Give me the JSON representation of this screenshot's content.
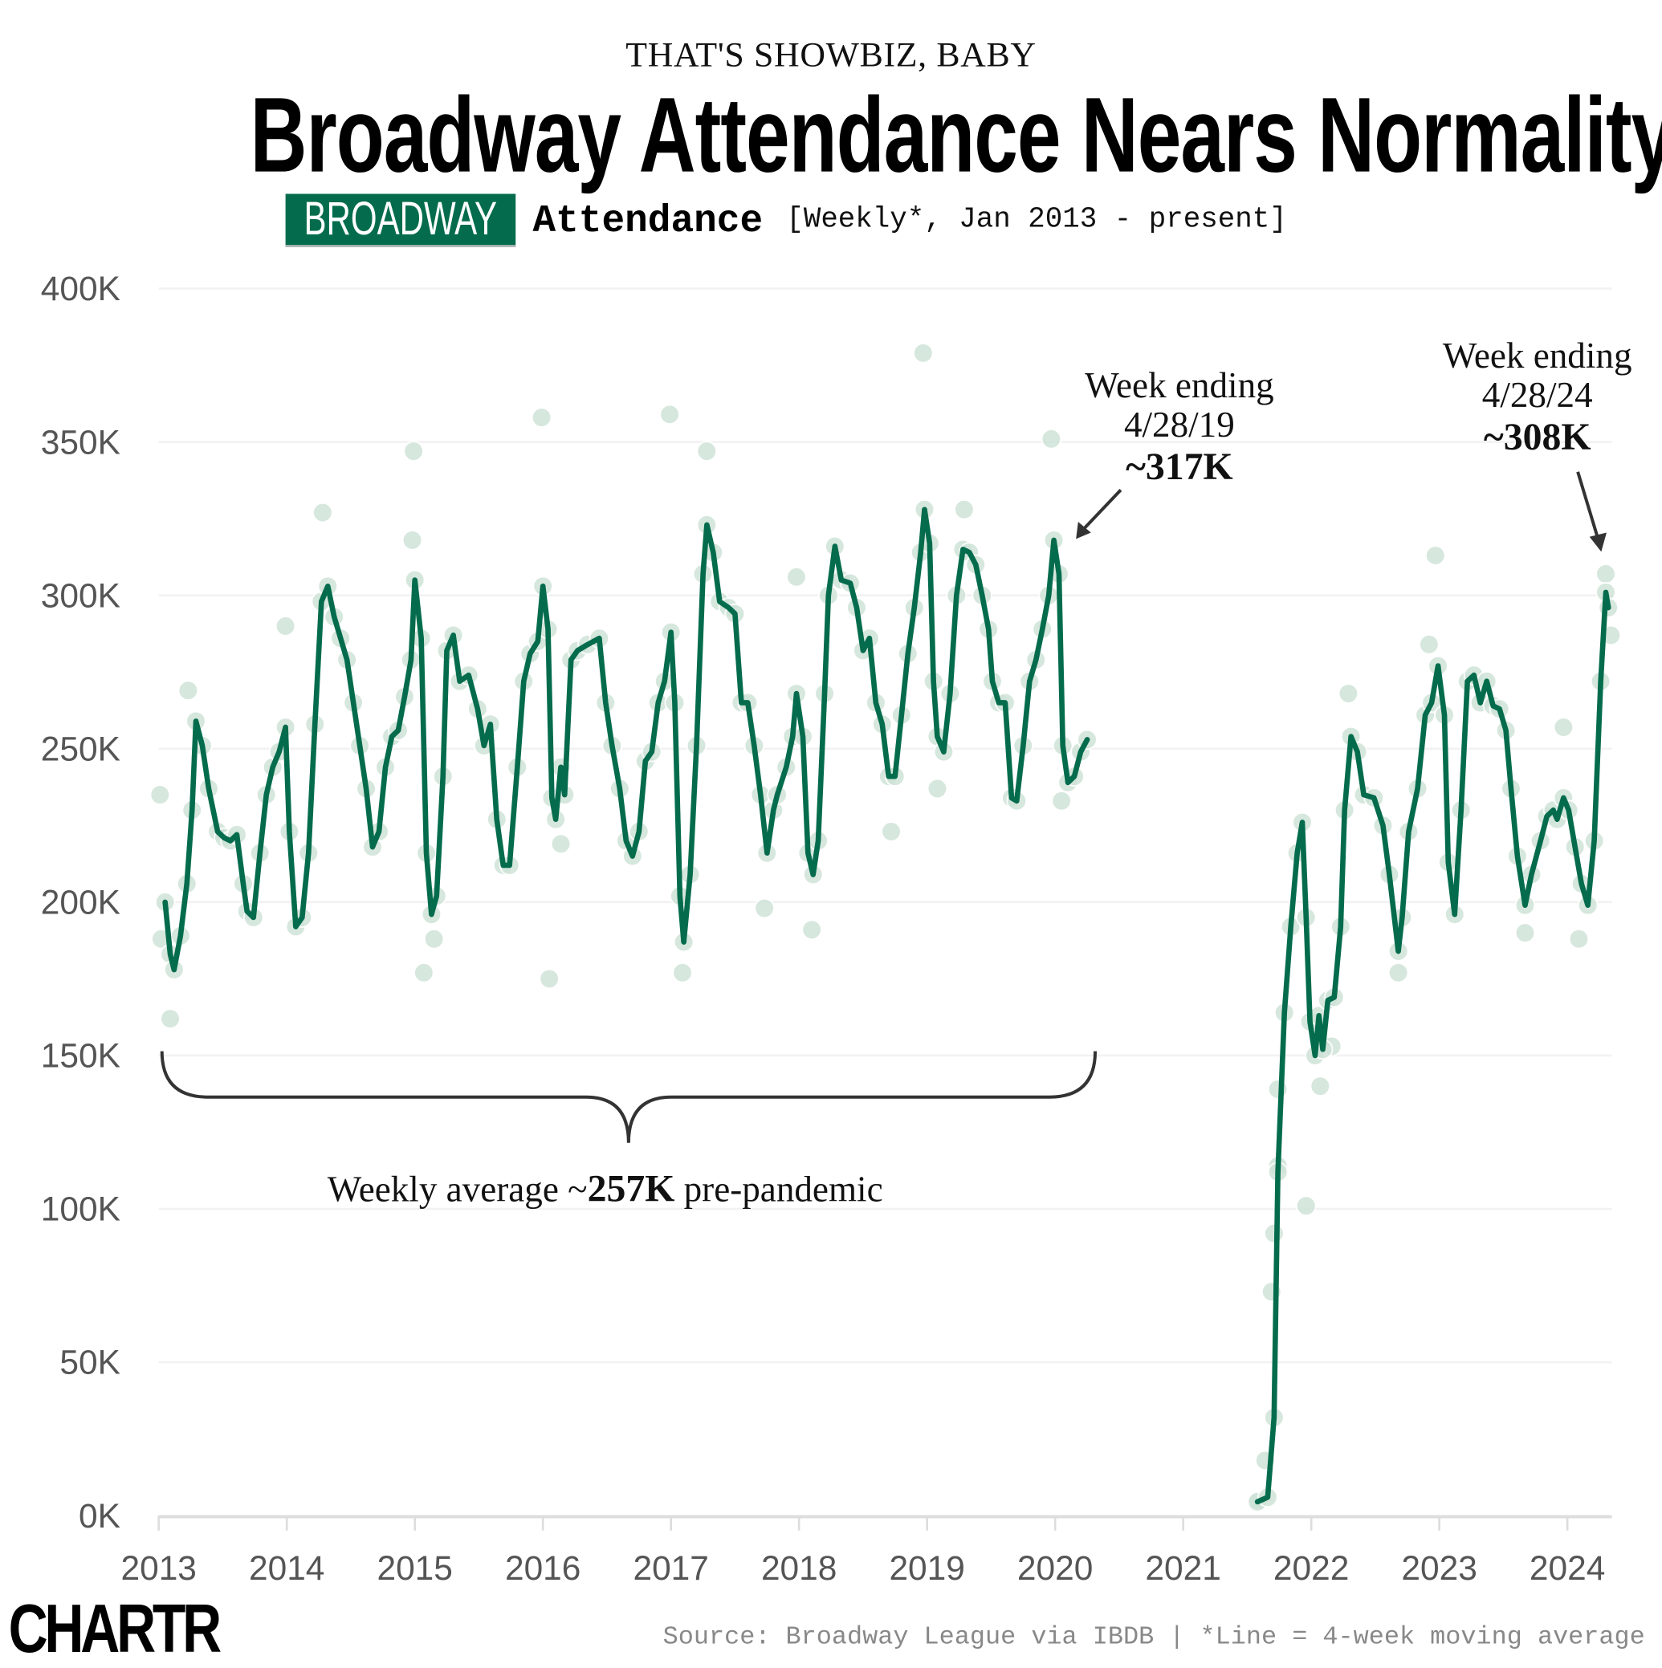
{
  "header": {
    "kicker": "THAT'S SHOWBIZ, BABY",
    "title": "Broadway Attendance Nears Normality",
    "sign_text": "BROADWAY",
    "subtitle_bold": "Attendance",
    "subtitle_light": "[Weekly*, Jan 2013 - present]"
  },
  "footer": {
    "logo": "CHARTR",
    "source": "Source: Broadway League via IBDB | *Line = 4-week moving average"
  },
  "colors": {
    "line": "#046c4c",
    "dots": "#cfe3d8",
    "sign": "#046c4c"
  },
  "chart_data": {
    "type": "line",
    "title": "Broadway Attendance Nears Normality",
    "xlabel": "",
    "ylabel": "",
    "xlim": [
      2013,
      2024.35
    ],
    "ylim": [
      0,
      400
    ],
    "grid": true,
    "x_ticks": [
      "2013",
      "2014",
      "2015",
      "2016",
      "2017",
      "2018",
      "2019",
      "2020",
      "2021",
      "2022",
      "2023",
      "2024"
    ],
    "y_ticks": [
      "0K",
      "50K",
      "100K",
      "150K",
      "200K",
      "250K",
      "300K",
      "350K",
      "400K"
    ],
    "moving_average_segments": [
      [
        [
          2013.05,
          200
        ],
        [
          2013.09,
          183
        ],
        [
          2013.12,
          178
        ],
        [
          2013.17,
          189
        ],
        [
          2013.22,
          206
        ],
        [
          2013.26,
          230
        ],
        [
          2013.29,
          259
        ],
        [
          2013.34,
          251
        ],
        [
          2013.39,
          237
        ],
        [
          2013.46,
          223
        ],
        [
          2013.51,
          221
        ],
        [
          2013.56,
          220
        ],
        [
          2013.61,
          222
        ],
        [
          2013.66,
          206
        ],
        [
          2013.69,
          197
        ],
        [
          2013.74,
          195
        ],
        [
          2013.79,
          216
        ],
        [
          2013.84,
          235
        ],
        [
          2013.89,
          244
        ],
        [
          2013.94,
          249
        ],
        [
          2013.99,
          257
        ],
        [
          2014.02,
          223
        ],
        [
          2014.07,
          192
        ],
        [
          2014.12,
          195
        ],
        [
          2014.17,
          216
        ],
        [
          2014.22,
          258
        ],
        [
          2014.27,
          298
        ],
        [
          2014.32,
          303
        ],
        [
          2014.37,
          293
        ],
        [
          2014.42,
          286
        ],
        [
          2014.47,
          279
        ],
        [
          2014.52,
          265
        ],
        [
          2014.57,
          251
        ],
        [
          2014.62,
          237
        ],
        [
          2014.67,
          218
        ],
        [
          2014.72,
          223
        ],
        [
          2014.77,
          244
        ],
        [
          2014.82,
          254
        ],
        [
          2014.87,
          256
        ],
        [
          2014.92,
          267
        ],
        [
          2014.97,
          279
        ],
        [
          2015.0,
          305
        ],
        [
          2015.05,
          286
        ],
        [
          2015.09,
          216
        ],
        [
          2015.13,
          196
        ],
        [
          2015.17,
          202
        ],
        [
          2015.22,
          241
        ],
        [
          2015.25,
          282
        ],
        [
          2015.3,
          287
        ],
        [
          2015.35,
          272
        ],
        [
          2015.42,
          274
        ],
        [
          2015.49,
          263
        ],
        [
          2015.54,
          251
        ],
        [
          2015.59,
          258
        ],
        [
          2015.64,
          227
        ],
        [
          2015.69,
          212
        ],
        [
          2015.74,
          212
        ],
        [
          2015.8,
          244
        ],
        [
          2015.85,
          272
        ],
        [
          2015.9,
          281
        ],
        [
          2015.96,
          285
        ],
        [
          2016.0,
          303
        ],
        [
          2016.04,
          289
        ],
        [
          2016.07,
          234
        ],
        [
          2016.1,
          227
        ],
        [
          2016.14,
          244
        ],
        [
          2016.17,
          235
        ],
        [
          2016.22,
          279
        ],
        [
          2016.27,
          282
        ],
        [
          2016.35,
          284
        ],
        [
          2016.44,
          286
        ],
        [
          2016.49,
          265
        ],
        [
          2016.54,
          251
        ],
        [
          2016.6,
          237
        ],
        [
          2016.65,
          220
        ],
        [
          2016.7,
          215
        ],
        [
          2016.75,
          223
        ],
        [
          2016.8,
          246
        ],
        [
          2016.85,
          249
        ],
        [
          2016.9,
          265
        ],
        [
          2016.95,
          272
        ],
        [
          2017.0,
          288
        ],
        [
          2017.03,
          265
        ],
        [
          2017.07,
          202
        ],
        [
          2017.1,
          187
        ],
        [
          2017.15,
          209
        ],
        [
          2017.2,
          251
        ],
        [
          2017.25,
          307
        ],
        [
          2017.28,
          323
        ],
        [
          2017.33,
          314
        ],
        [
          2017.38,
          298
        ],
        [
          2017.45,
          296
        ],
        [
          2017.5,
          294
        ],
        [
          2017.55,
          265
        ],
        [
          2017.6,
          265
        ],
        [
          2017.65,
          251
        ],
        [
          2017.7,
          235
        ],
        [
          2017.75,
          216
        ],
        [
          2017.8,
          230
        ],
        [
          2017.83,
          235
        ],
        [
          2017.9,
          244
        ],
        [
          2017.95,
          254
        ],
        [
          2017.98,
          268
        ],
        [
          2018.03,
          254
        ],
        [
          2018.07,
          216
        ],
        [
          2018.11,
          209
        ],
        [
          2018.15,
          220
        ],
        [
          2018.2,
          268
        ],
        [
          2018.23,
          300
        ],
        [
          2018.28,
          316
        ],
        [
          2018.33,
          305
        ],
        [
          2018.4,
          304
        ],
        [
          2018.45,
          296
        ],
        [
          2018.5,
          282
        ],
        [
          2018.55,
          286
        ],
        [
          2018.6,
          265
        ],
        [
          2018.65,
          258
        ],
        [
          2018.7,
          241
        ],
        [
          2018.75,
          241
        ],
        [
          2018.8,
          261
        ],
        [
          2018.85,
          281
        ],
        [
          2018.9,
          296
        ],
        [
          2018.95,
          314
        ],
        [
          2018.98,
          328
        ],
        [
          2019.02,
          317
        ],
        [
          2019.05,
          272
        ],
        [
          2019.08,
          254
        ],
        [
          2019.13,
          249
        ],
        [
          2019.18,
          268
        ],
        [
          2019.23,
          300
        ],
        [
          2019.28,
          315
        ],
        [
          2019.33,
          314
        ],
        [
          2019.38,
          310
        ],
        [
          2019.43,
          300
        ],
        [
          2019.48,
          289
        ],
        [
          2019.51,
          272
        ],
        [
          2019.56,
          265
        ],
        [
          2019.61,
          265
        ],
        [
          2019.66,
          234
        ],
        [
          2019.7,
          233
        ],
        [
          2019.75,
          251
        ],
        [
          2019.8,
          272
        ],
        [
          2019.85,
          279
        ],
        [
          2019.9,
          289
        ],
        [
          2019.95,
          300
        ],
        [
          2019.99,
          318
        ],
        [
          2020.03,
          307
        ],
        [
          2020.06,
          251
        ],
        [
          2020.1,
          239
        ],
        [
          2020.15,
          241
        ],
        [
          2020.2,
          249
        ],
        [
          2020.25,
          253
        ]
      ],
      [
        [
          2021.58,
          4.5
        ],
        [
          2021.66,
          6
        ],
        [
          2021.71,
          32
        ],
        [
          2021.74,
          112
        ],
        [
          2021.79,
          164
        ],
        [
          2021.84,
          192
        ],
        [
          2021.89,
          216
        ],
        [
          2021.93,
          226
        ],
        [
          2021.96,
          195
        ],
        [
          2021.99,
          161
        ],
        [
          2022.03,
          150
        ],
        [
          2022.06,
          163
        ],
        [
          2022.09,
          152
        ],
        [
          2022.13,
          168
        ],
        [
          2022.18,
          169
        ],
        [
          2022.23,
          192
        ],
        [
          2022.26,
          230
        ],
        [
          2022.31,
          254
        ],
        [
          2022.36,
          249
        ],
        [
          2022.41,
          235
        ],
        [
          2022.49,
          234
        ],
        [
          2022.56,
          225
        ],
        [
          2022.61,
          209
        ],
        [
          2022.68,
          184
        ],
        [
          2022.71,
          195
        ],
        [
          2022.76,
          223
        ],
        [
          2022.83,
          237
        ],
        [
          2022.89,
          261
        ],
        [
          2022.94,
          265
        ],
        [
          2022.99,
          277
        ],
        [
          2023.04,
          261
        ],
        [
          2023.07,
          213
        ],
        [
          2023.12,
          196
        ],
        [
          2023.17,
          230
        ],
        [
          2023.22,
          272
        ],
        [
          2023.27,
          274
        ],
        [
          2023.32,
          265
        ],
        [
          2023.37,
          272
        ],
        [
          2023.42,
          264
        ],
        [
          2023.47,
          263
        ],
        [
          2023.52,
          256
        ],
        [
          2023.56,
          237
        ],
        [
          2023.61,
          215
        ],
        [
          2023.67,
          199
        ],
        [
          2023.72,
          209
        ],
        [
          2023.79,
          220
        ],
        [
          2023.84,
          228
        ],
        [
          2023.89,
          230
        ],
        [
          2023.92,
          227
        ],
        [
          2023.97,
          234
        ],
        [
          2024.01,
          230
        ],
        [
          2024.06,
          218
        ],
        [
          2024.11,
          206
        ],
        [
          2024.16,
          199
        ],
        [
          2024.21,
          220
        ],
        [
          2024.26,
          272
        ],
        [
          2024.3,
          301
        ],
        [
          2024.32,
          296
        ]
      ]
    ],
    "weekly_points": [
      [
        2013.01,
        235
      ],
      [
        2013.02,
        188
      ],
      [
        2013.09,
        162
      ],
      [
        2013.23,
        269
      ],
      [
        2013.99,
        290
      ],
      [
        2014.28,
        327
      ],
      [
        2014.99,
        347
      ],
      [
        2014.98,
        318
      ],
      [
        2015.07,
        177
      ],
      [
        2015.15,
        188
      ],
      [
        2015.99,
        358
      ],
      [
        2016.05,
        175
      ],
      [
        2016.14,
        219
      ],
      [
        2016.99,
        359
      ],
      [
        2017.09,
        177
      ],
      [
        2017.28,
        347
      ],
      [
        2017.73,
        198
      ],
      [
        2017.98,
        306
      ],
      [
        2018.1,
        191
      ],
      [
        2018.72,
        223
      ],
      [
        2018.97,
        379
      ],
      [
        2019.08,
        237
      ],
      [
        2019.29,
        328
      ],
      [
        2019.97,
        351
      ],
      [
        2020.05,
        233
      ],
      [
        2021.59,
        5
      ],
      [
        2021.64,
        18
      ],
      [
        2021.69,
        73
      ],
      [
        2021.71,
        92
      ],
      [
        2021.74,
        114
      ],
      [
        2021.74,
        139
      ],
      [
        2021.96,
        101
      ],
      [
        2022.07,
        140
      ],
      [
        2022.16,
        153
      ],
      [
        2022.29,
        268
      ],
      [
        2022.68,
        177
      ],
      [
        2022.92,
        284
      ],
      [
        2022.97,
        313
      ],
      [
        2023.67,
        190
      ],
      [
        2023.97,
        257
      ],
      [
        2024.09,
        188
      ],
      [
        2024.3,
        307
      ],
      [
        2024.34,
        287
      ]
    ],
    "annotations": {
      "peak_2019": {
        "line1": "Week ending",
        "line2": "4/28/19",
        "value": "~317K"
      },
      "peak_2024": {
        "line1": "Week ending",
        "line2": "4/28/24",
        "value": "~308K"
      },
      "average": {
        "prefix": "Weekly average ~",
        "value": "257K",
        "suffix": " pre-pandemic"
      }
    }
  }
}
